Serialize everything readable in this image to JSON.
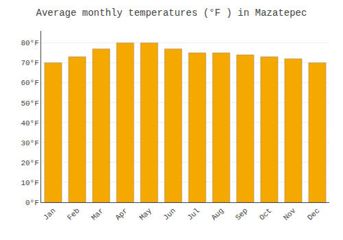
{
  "chart_data": {
    "type": "bar",
    "title": "Average monthly temperatures (°F ) in Mazatepec",
    "categories": [
      "Jan",
      "Feb",
      "Mar",
      "Apr",
      "May",
      "Jun",
      "Jul",
      "Aug",
      "Sep",
      "Oct",
      "Nov",
      "Dec"
    ],
    "values": [
      70,
      73,
      77,
      80,
      80,
      77,
      75,
      75,
      74,
      73,
      72,
      70
    ],
    "color": "#F5A800",
    "ylim": [
      0,
      86
    ],
    "yticks": [
      {
        "value": 0,
        "label": "0°F"
      },
      {
        "value": 10,
        "label": "10°F"
      },
      {
        "value": 20,
        "label": "20°F"
      },
      {
        "value": 30,
        "label": "30°F"
      },
      {
        "value": 40,
        "label": "40°F"
      },
      {
        "value": 50,
        "label": "50°F"
      },
      {
        "value": 60,
        "label": "60°F"
      },
      {
        "value": 70,
        "label": "70°F"
      },
      {
        "value": 80,
        "label": "80°F"
      }
    ],
    "grid": true
  }
}
